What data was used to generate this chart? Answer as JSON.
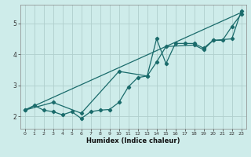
{
  "title": "",
  "xlabel": "Humidex (Indice chaleur)",
  "ylabel": "",
  "background_color": "#ceecea",
  "grid_color": "#b0cfcd",
  "line_color": "#1a6b6b",
  "xlim": [
    -0.5,
    23.5
  ],
  "ylim": [
    1.6,
    5.6
  ],
  "yticks": [
    2,
    3,
    4,
    5
  ],
  "xticks": [
    0,
    1,
    2,
    3,
    4,
    5,
    6,
    7,
    8,
    9,
    10,
    11,
    12,
    13,
    14,
    15,
    16,
    17,
    18,
    19,
    20,
    21,
    22,
    23
  ],
  "series1": [
    [
      0,
      2.2
    ],
    [
      1,
      2.35
    ],
    [
      2,
      2.2
    ],
    [
      3,
      2.15
    ],
    [
      4,
      2.05
    ],
    [
      5,
      2.15
    ],
    [
      6,
      1.93
    ],
    [
      7,
      2.15
    ],
    [
      8,
      2.2
    ],
    [
      9,
      2.22
    ],
    [
      10,
      2.45
    ],
    [
      11,
      2.95
    ],
    [
      12,
      3.25
    ],
    [
      13,
      3.3
    ],
    [
      14,
      4.5
    ],
    [
      15,
      3.7
    ],
    [
      16,
      4.35
    ],
    [
      17,
      4.35
    ],
    [
      18,
      4.35
    ],
    [
      19,
      4.2
    ],
    [
      20,
      4.45
    ],
    [
      21,
      4.45
    ],
    [
      22,
      4.9
    ],
    [
      23,
      5.3
    ]
  ],
  "series2": [
    [
      0,
      2.2
    ],
    [
      3,
      2.45
    ],
    [
      6,
      2.1
    ],
    [
      10,
      3.45
    ],
    [
      13,
      3.3
    ],
    [
      14,
      3.75
    ],
    [
      15,
      4.25
    ],
    [
      18,
      4.3
    ],
    [
      19,
      4.15
    ],
    [
      20,
      4.45
    ],
    [
      22,
      4.5
    ],
    [
      23,
      5.4
    ]
  ],
  "series3": [
    [
      0,
      2.2
    ],
    [
      23,
      5.35
    ]
  ]
}
